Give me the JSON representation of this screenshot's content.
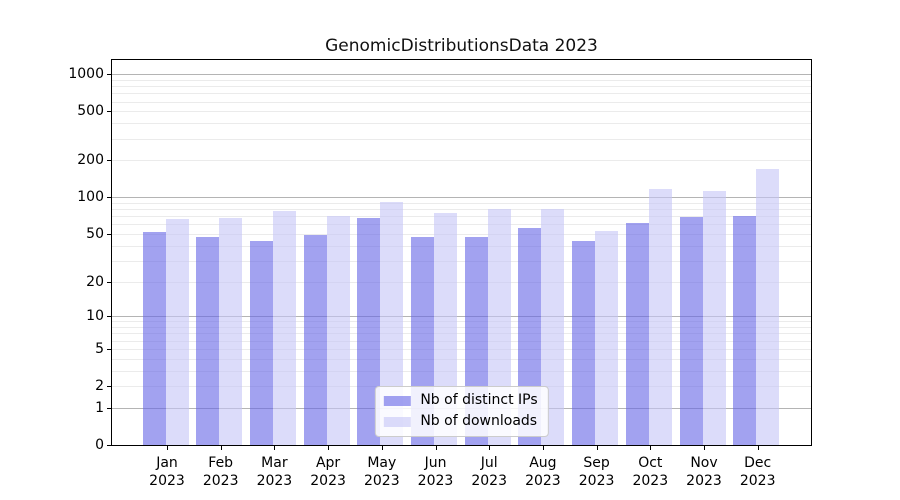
{
  "title": "GenomicDistributionsData 2023",
  "chart_data": {
    "type": "bar",
    "title": "GenomicDistributionsData 2023",
    "categories": [
      "Jan",
      "Feb",
      "Mar",
      "Apr",
      "May",
      "Jun",
      "Jul",
      "Aug",
      "Sep",
      "Oct",
      "Nov",
      "Dec"
    ],
    "x_year_label": "2023",
    "series": [
      {
        "name": "Nb of distinct IPs",
        "color": "#6464e6",
        "alpha": 0.6,
        "values": [
          52,
          47,
          44,
          49,
          68,
          47,
          47,
          56,
          44,
          62,
          69,
          70
        ]
      },
      {
        "name": "Nb of downloads",
        "color": "#c4c4f6",
        "alpha": 0.6,
        "values": [
          67,
          68,
          77,
          70,
          91,
          74,
          80,
          80,
          53,
          117,
          112,
          169
        ]
      }
    ],
    "yscale": "log1p",
    "ylim": [
      0,
      1300
    ],
    "y_tick_values": [
      0,
      1,
      2,
      5,
      10,
      20,
      50,
      100,
      200,
      500,
      1000
    ],
    "grid": {
      "major_lines": [
        1,
        10,
        100,
        1000
      ],
      "minor_lines": [
        2,
        3,
        4,
        5,
        6,
        7,
        8,
        9,
        20,
        30,
        40,
        50,
        60,
        70,
        80,
        90,
        200,
        300,
        400,
        500,
        600,
        700,
        800,
        900
      ]
    },
    "legend_position": "lower center",
    "legend_entries": [
      "Nb of distinct IPs",
      "Nb of downloads"
    ]
  },
  "colors": {
    "major_grid": "#b4b4b4",
    "minor_grid": "#ebebeb",
    "spine": "#000000",
    "background": "#ffffff"
  }
}
